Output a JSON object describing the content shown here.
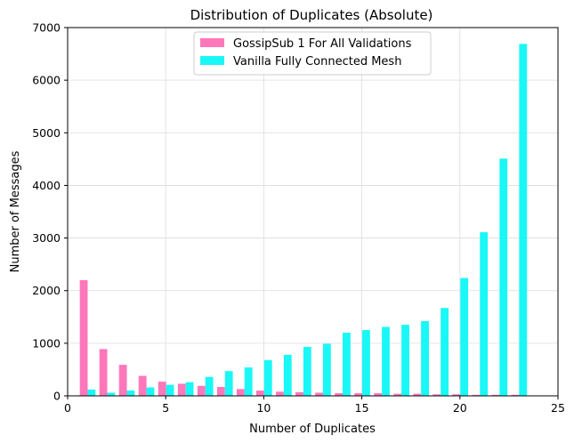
{
  "chart_data": {
    "type": "bar",
    "title": "Distribution of Duplicates (Absolute)",
    "xlabel": "Number of Duplicates",
    "ylabel": "Number of Messages",
    "xlim": [
      0,
      25
    ],
    "ylim": [
      0,
      7000
    ],
    "xticks": [
      0,
      5,
      10,
      15,
      20,
      25
    ],
    "yticks": [
      0,
      1000,
      2000,
      3000,
      4000,
      5000,
      6000,
      7000
    ],
    "grid": true,
    "legend_position": "upper-center",
    "x": [
      1,
      2,
      3,
      4,
      5,
      6,
      7,
      8,
      9,
      10,
      11,
      12,
      13,
      14,
      15,
      16,
      17,
      18,
      19,
      20,
      21,
      22,
      23
    ],
    "series": [
      {
        "name": "GossipSub 1 For All Validations",
        "color": "#ff77bb",
        "values": [
          2200,
          890,
          590,
          380,
          270,
          230,
          190,
          170,
          130,
          100,
          80,
          70,
          60,
          50,
          50,
          50,
          40,
          40,
          30,
          30,
          20,
          20,
          20
        ]
      },
      {
        "name": "Vanilla Fully Connected Mesh",
        "color": "#1af7f7",
        "values": [
          120,
          60,
          100,
          160,
          210,
          260,
          360,
          470,
          540,
          680,
          780,
          930,
          990,
          1200,
          1250,
          1310,
          1350,
          1420,
          1670,
          2240,
          3110,
          4510,
          6690
        ]
      }
    ]
  }
}
